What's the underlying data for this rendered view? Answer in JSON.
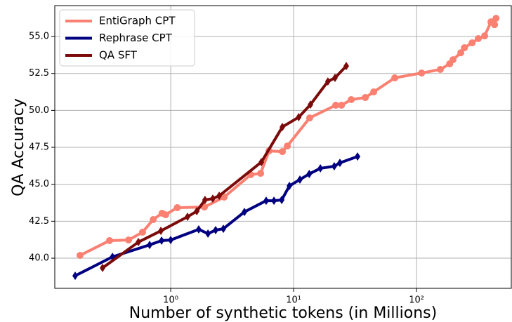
{
  "chart_data": {
    "type": "line",
    "xlabel": "Number of synthetic tokens (in Millions)",
    "ylabel": "QA Accuracy",
    "xscale": "log",
    "grid": true,
    "legend": "upper left",
    "xlim": [
      0.114,
      590
    ],
    "ylim": [
      37.96,
      57.09
    ],
    "xticks": [
      {
        "value": 1,
        "label": "10⁰"
      },
      {
        "value": 10,
        "label": "10¹"
      },
      {
        "value": 100,
        "label": "10²"
      }
    ],
    "yticks": [
      {
        "value": 40,
        "label": "40.0"
      },
      42.5,
      {
        "value": 45,
        "label": "45.0"
      },
      47.5,
      {
        "value": 50,
        "label": "50.0"
      },
      52.5,
      {
        "value": 55,
        "label": "55.0"
      }
    ],
    "series": [
      {
        "name": "EntiGraph CPT",
        "color": "#fa8072",
        "marker": "circle",
        "x": [
          0.183,
          0.318,
          0.454,
          0.59,
          0.72,
          0.85,
          0.91,
          1.13,
          1.88,
          2.72,
          4.48,
          5.39,
          6.31,
          8.1,
          8.89,
          13.5,
          22,
          24.5,
          29.4,
          38.3,
          44.8,
          66.5,
          110,
          156,
          186,
          198,
          229,
          245,
          283,
          318,
          358,
          403,
          443,
          431
        ],
        "values": [
          40.19,
          41.19,
          41.23,
          41.76,
          42.61,
          43.04,
          42.94,
          43.42,
          43.46,
          44.13,
          45.65,
          45.74,
          47.26,
          47.21,
          47.59,
          49.49,
          50.35,
          50.35,
          50.73,
          50.87,
          51.25,
          52.2,
          52.53,
          52.77,
          53.15,
          53.43,
          53.9,
          54.24,
          54.57,
          54.86,
          55.04,
          55.99,
          56.23,
          55.8
        ]
      },
      {
        "name": "Rephrase CPT",
        "color": "#000080",
        "marker": "diamond",
        "x": [
          0.167,
          0.336,
          0.674,
          0.843,
          1.0,
          1.69,
          2.01,
          2.32,
          2.68,
          3.98,
          5.98,
          6.92,
          8.0,
          9.24,
          11.25,
          13.4,
          16.5,
          21.4,
          23.8,
          33.1
        ],
        "values": [
          38.81,
          40.09,
          40.9,
          41.19,
          41.23,
          41.95,
          41.66,
          41.9,
          41.99,
          43.13,
          43.89,
          43.89,
          43.94,
          44.89,
          45.32,
          45.7,
          46.08,
          46.22,
          46.45,
          46.88
        ]
      },
      {
        "name": "QA SFT",
        "color": "#7b0a0a",
        "marker": "diamond",
        "x": [
          0.279,
          0.546,
          0.832,
          1.37,
          1.63,
          1.9,
          2.2,
          2.48,
          5.46,
          8.1,
          11.0,
          13.7,
          19.0,
          21.7,
          26.8
        ],
        "values": [
          39.34,
          41.09,
          41.85,
          42.8,
          43.18,
          43.94,
          44.03,
          44.22,
          46.5,
          48.88,
          49.54,
          50.39,
          51.96,
          52.2,
          53.0
        ]
      }
    ]
  }
}
